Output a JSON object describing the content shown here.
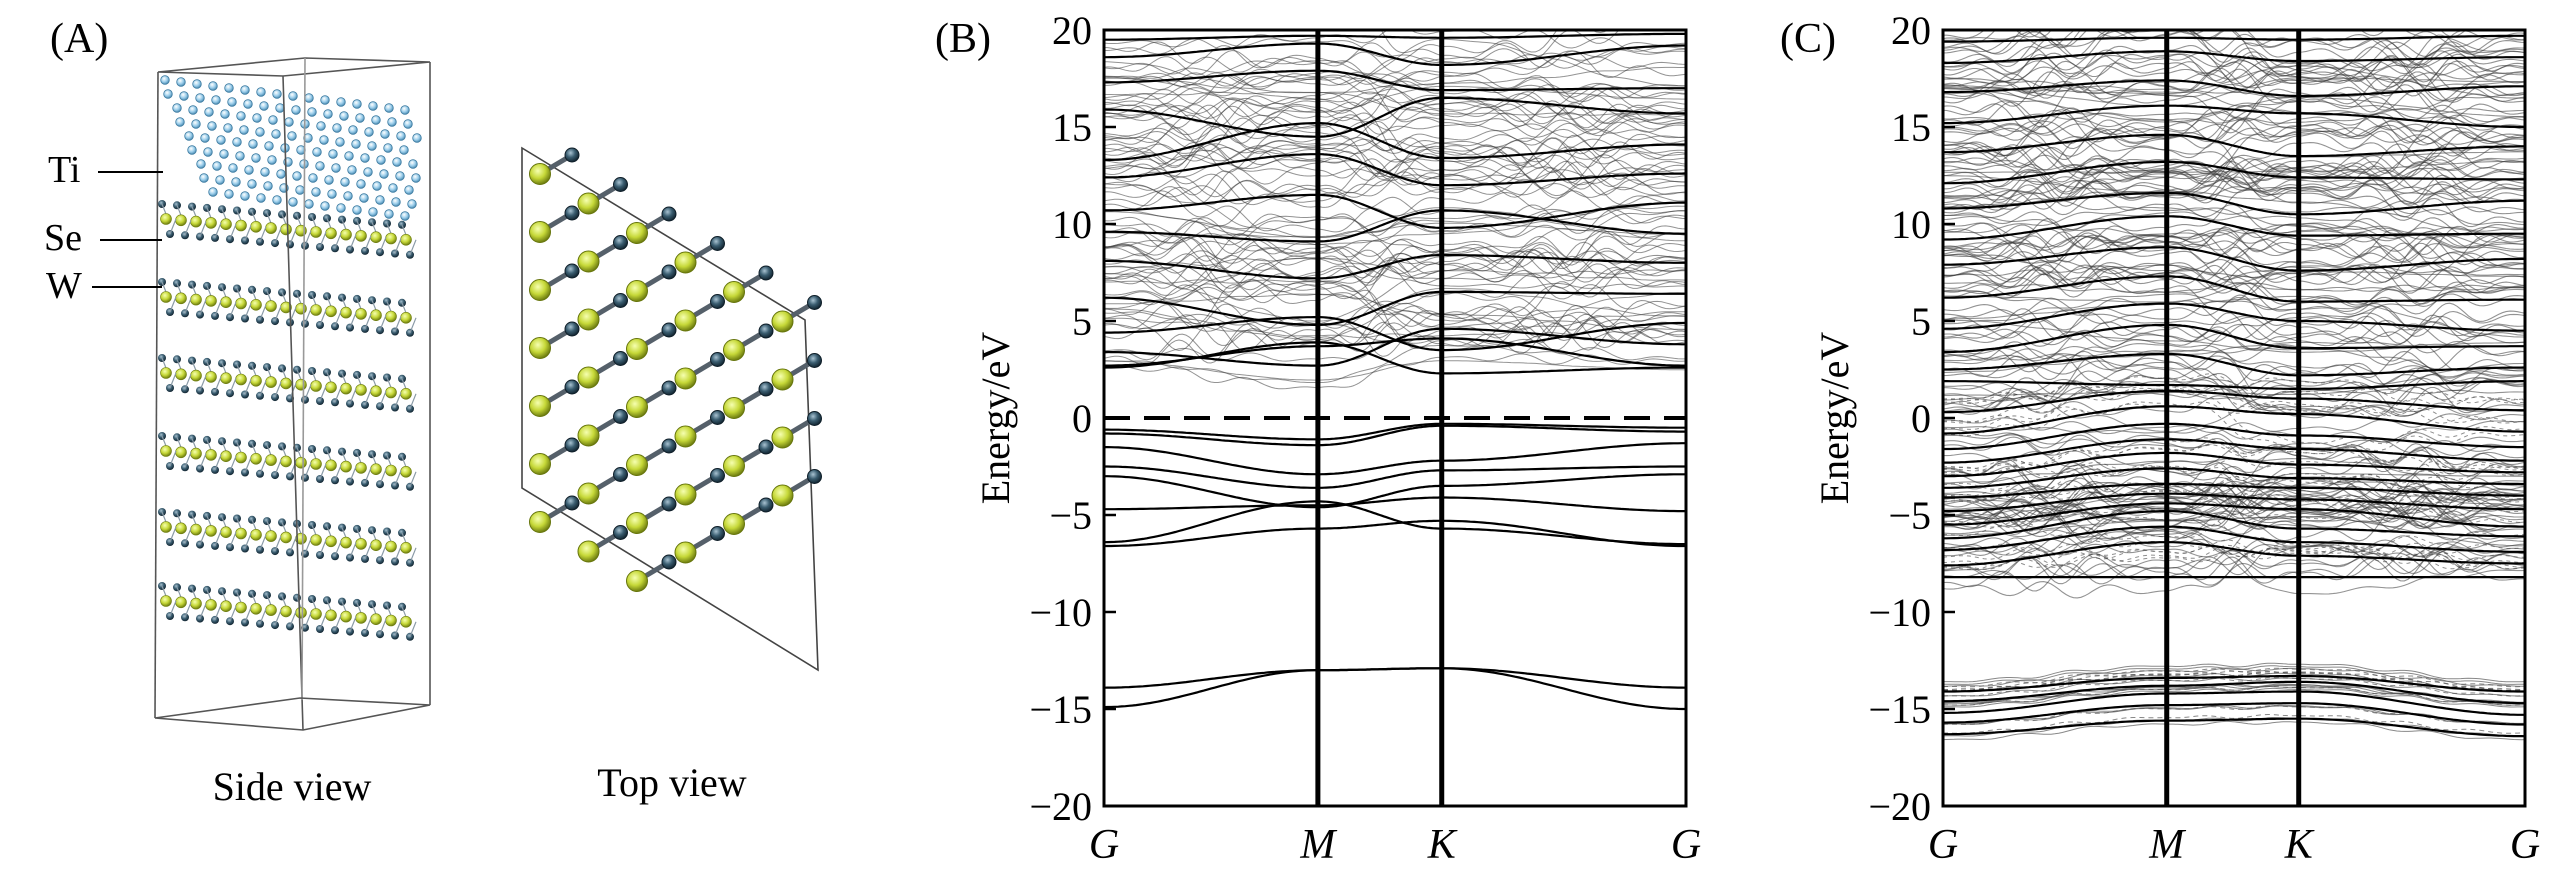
{
  "panels": {
    "a": {
      "tag": "(A)",
      "side_view": "Side view",
      "top_view": "Top view",
      "atom_labels": [
        "Ti",
        "Se",
        "W"
      ]
    },
    "b": {
      "tag": "(B)"
    },
    "c": {
      "tag": "(C)"
    }
  },
  "colors": {
    "ti": "#8fc3e0",
    "se": "#c8d83a",
    "w": "#2f4a5a",
    "band": "#000000"
  },
  "chart_data": [
    {
      "panel": "(B)",
      "type": "line",
      "ylabel": "Energy/eV",
      "ylim": [
        -20,
        20
      ],
      "yticks": [
        20,
        15,
        10,
        5,
        0,
        -5,
        -10,
        -15,
        -20
      ],
      "ytick_labels": [
        "20",
        "15",
        "10",
        "5",
        "0",
        "−5",
        "−10",
        "−15",
        "−20"
      ],
      "kpoints": [
        "G",
        "M",
        "K",
        "G"
      ],
      "kpoint_positions": [
        0,
        0.3675,
        0.5803,
        1
      ],
      "fermi_level": 0,
      "grid": false,
      "series": [
        {
          "values": [
            -14.9,
            -13.0,
            -12.9,
            -15.0
          ]
        },
        {
          "values": [
            -13.9,
            -13.0,
            -12.9,
            -13.9
          ]
        },
        {
          "values": [
            -6.6,
            -5.7,
            -5.3,
            -6.6
          ]
        },
        {
          "values": [
            -6.4,
            -4.3,
            -5.7,
            -6.5
          ]
        },
        {
          "values": [
            -4.7,
            -4.5,
            -4.1,
            -4.8
          ]
        },
        {
          "values": [
            -3.0,
            -4.6,
            -3.5,
            -2.9
          ]
        },
        {
          "values": [
            -2.5,
            -3.6,
            -2.7,
            -2.5
          ]
        },
        {
          "values": [
            -1.5,
            -2.9,
            -2.2,
            -1.3
          ]
        },
        {
          "values": [
            -0.8,
            -1.4,
            -0.4,
            -0.7
          ]
        },
        {
          "values": [
            -0.6,
            -1.1,
            -0.3,
            -0.5
          ]
        },
        {
          "values": [
            2.6,
            3.9,
            2.3,
            2.6
          ]
        },
        {
          "values": [
            2.7,
            3.7,
            4.1,
            2.7
          ]
        },
        {
          "values": [
            3.4,
            2.7,
            4.6,
            3.8
          ]
        },
        {
          "values": [
            4.4,
            5.2,
            3.5,
            4.9
          ]
        },
        {
          "values": [
            6.2,
            4.8,
            6.5,
            6.4
          ]
        },
        {
          "values": [
            8.1,
            7.2,
            8.4,
            8.0
          ]
        },
        {
          "values": [
            9.6,
            9.1,
            10.7,
            9.5
          ]
        },
        {
          "values": [
            10.7,
            11.5,
            9.8,
            11.1
          ]
        },
        {
          "values": [
            12.4,
            13.6,
            12.0,
            12.6
          ]
        },
        {
          "values": [
            13.3,
            15.2,
            13.4,
            14.1
          ]
        },
        {
          "values": [
            15.9,
            14.5,
            16.5,
            15.7
          ]
        },
        {
          "values": [
            17.3,
            17.9,
            16.9,
            17.0
          ]
        },
        {
          "values": [
            18.6,
            19.3,
            18.2,
            19.2
          ]
        },
        {
          "values": [
            19.5,
            19.7,
            19.6,
            19.8
          ]
        }
      ]
    },
    {
      "panel": "(C)",
      "type": "line",
      "ylabel": "Energy/eV",
      "ylim": [
        -20,
        20
      ],
      "yticks": [
        20,
        15,
        10,
        5,
        0,
        -5,
        -10,
        -15,
        -20
      ],
      "ytick_labels": [
        "20",
        "15",
        "10",
        "5",
        "0",
        "−5",
        "−10",
        "−15",
        "−20"
      ],
      "kpoints": [
        "G",
        "M",
        "K",
        "G"
      ],
      "kpoint_positions": [
        0,
        0.3844,
        0.6112,
        1
      ],
      "grid": false,
      "series": [
        {
          "values": [
            -16.3,
            -15.6,
            -15.5,
            -16.4
          ]
        },
        {
          "values": [
            -15.7,
            -14.8,
            -14.7,
            -15.8
          ]
        },
        {
          "values": [
            -15.2,
            -14.2,
            -14.1,
            -15.3
          ]
        },
        {
          "values": [
            -14.6,
            -13.8,
            -13.6,
            -14.7
          ]
        },
        {
          "values": [
            -14.1,
            -13.4,
            -13.3,
            -14.1
          ]
        },
        {
          "values": [
            -8.2,
            -8.2,
            -8.2,
            -8.2
          ]
        },
        {
          "values": [
            -7.6,
            -6.4,
            -7.1,
            -7.5
          ]
        },
        {
          "values": [
            -6.8,
            -5.6,
            -6.4,
            -6.9
          ]
        },
        {
          "values": [
            -6.2,
            -4.8,
            -5.7,
            -6.1
          ]
        },
        {
          "values": [
            -5.5,
            -4.4,
            -4.7,
            -5.6
          ]
        },
        {
          "values": [
            -4.8,
            -3.9,
            -4.2,
            -4.7
          ]
        },
        {
          "values": [
            -4.1,
            -3.4,
            -3.6,
            -4.0
          ]
        },
        {
          "values": [
            -3.6,
            -2.6,
            -3.1,
            -3.4
          ]
        },
        {
          "values": [
            -3.0,
            -1.8,
            -2.4,
            -2.8
          ]
        },
        {
          "values": [
            -2.3,
            -1.1,
            -1.6,
            -2.2
          ]
        },
        {
          "values": [
            -1.6,
            -0.3,
            -0.9,
            -1.5
          ]
        },
        {
          "values": [
            -0.8,
            0.6,
            0.2,
            -0.7
          ]
        },
        {
          "values": [
            0.3,
            1.4,
            1.0,
            0.4
          ]
        },
        {
          "values": [
            1.9,
            1.7,
            1.5,
            1.9
          ]
        },
        {
          "values": [
            2.5,
            3.3,
            2.2,
            2.6
          ]
        },
        {
          "values": [
            3.4,
            4.8,
            3.6,
            3.7
          ]
        },
        {
          "values": [
            4.6,
            5.9,
            5.0,
            4.5
          ]
        },
        {
          "values": [
            6.2,
            7.3,
            6.0,
            6.1
          ]
        },
        {
          "values": [
            7.9,
            8.8,
            7.6,
            8.2
          ]
        },
        {
          "values": [
            9.2,
            10.4,
            9.4,
            9.5
          ]
        },
        {
          "values": [
            10.8,
            11.6,
            10.5,
            11.2
          ]
        },
        {
          "values": [
            12.1,
            13.2,
            12.4,
            12.3
          ]
        },
        {
          "values": [
            13.7,
            14.6,
            13.5,
            14.0
          ]
        },
        {
          "values": [
            15.2,
            16.1,
            15.7,
            15.0
          ]
        },
        {
          "values": [
            16.8,
            17.4,
            16.6,
            17.1
          ]
        },
        {
          "values": [
            18.3,
            18.9,
            18.4,
            18.6
          ]
        },
        {
          "values": [
            19.4,
            19.6,
            19.5,
            19.7
          ]
        }
      ]
    }
  ]
}
